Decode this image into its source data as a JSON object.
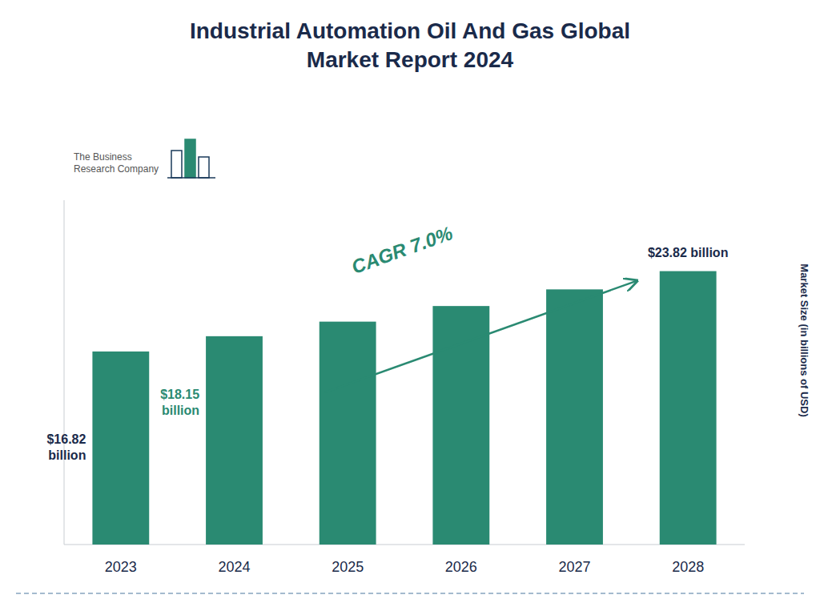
{
  "chart_data": {
    "type": "bar",
    "title": "Industrial Automation Oil And Gas Global\nMarket Report 2024",
    "categories": [
      "2023",
      "2024",
      "2025",
      "2026",
      "2027",
      "2028"
    ],
    "values": [
      16.82,
      18.15,
      19.42,
      20.78,
      22.23,
      23.82
    ],
    "color": "#2a8a72",
    "ylabel": "Market Size (in billions of USD)",
    "ylim": [
      0,
      30
    ],
    "grid": false,
    "tick_labels": "x",
    "annotations": [
      {
        "text": "$16.82\nbillion",
        "x": "2023",
        "color": "#1a2a4a"
      },
      {
        "text": "$18.15\nbillion",
        "x": "2024",
        "color": "#2a8a72"
      },
      {
        "text": "$23.82 billion",
        "x": "2028",
        "color": "#1a2a4a"
      },
      {
        "text": "CAGR 7.0%",
        "color": "#2a8a72"
      },
      {
        "text": "The Business\nResearch Company"
      }
    ]
  }
}
